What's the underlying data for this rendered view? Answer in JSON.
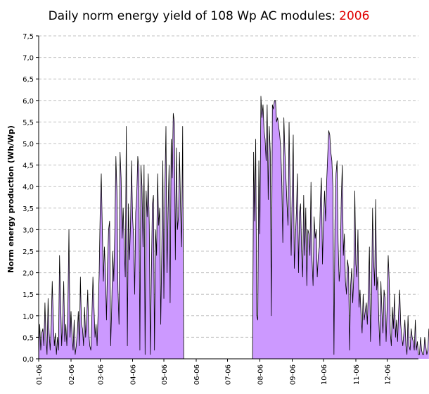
{
  "chart_data": {
    "type": "area",
    "title": "Daily norm energy yield of 108 Wp AC modules:",
    "title_year": "2006",
    "ylabel": "Norm energy production (Wh/Wp)",
    "xlabel": "",
    "ylim": [
      0,
      7.5
    ],
    "xlim": [
      1,
      365
    ],
    "yticks": [
      "0,0",
      "0,5",
      "1,0",
      "1,5",
      "2,0",
      "2,5",
      "3,0",
      "3,5",
      "4,0",
      "4,5",
      "5,0",
      "5,5",
      "6,0",
      "6,5",
      "7,0",
      "7,5"
    ],
    "month_labels": [
      "01-06",
      "02-06",
      "03-06",
      "04-06",
      "05-06",
      "06-06",
      "07-06",
      "08-06",
      "09-06",
      "10-06",
      "11-06",
      "12-06"
    ],
    "grid": true,
    "legend": "none",
    "colors": {
      "fill": "#cc99ff",
      "line": "#000000",
      "title_year": "#e00000",
      "grid": "#c0c0c0"
    },
    "note": "",
    "series": [
      {
        "values": [
          0.1,
          0.8,
          0.2,
          0.6,
          0.7,
          0.3,
          1.3,
          0.5,
          0.1,
          1.4,
          0.6,
          0.2,
          0.8,
          1.8,
          0.9,
          0.3,
          0.6,
          0.1,
          0.5,
          0.2,
          2.4,
          1.4,
          0.3,
          0.9,
          1.8,
          0.4,
          0.8,
          0.3,
          1.2,
          3.0,
          0.5,
          1.1,
          0.5,
          0.2,
          0.9,
          0.1,
          0.3,
          0.6,
          1.1,
          0.3,
          1.9,
          0.8,
          0.7,
          0.3,
          1.2,
          0.5,
          0.9,
          1.6,
          0.6,
          0.3,
          0.2,
          1.0,
          1.9,
          1.2,
          0.5,
          0.8,
          0.3,
          1.1,
          2.0,
          3.5,
          4.3,
          3.0,
          1.8,
          2.6,
          2.0,
          0.9,
          2.2,
          3.0,
          3.2,
          0.3,
          1.2,
          2.5,
          1.8,
          3.0,
          4.7,
          3.9,
          1.6,
          0.8,
          4.8,
          4.2,
          2.8,
          3.5,
          2.6,
          1.9,
          5.4,
          0.3,
          3.6,
          2.3,
          3.1,
          4.6,
          3.3,
          2.8,
          1.5,
          3.4,
          3.8,
          4.7,
          4.4,
          0.2,
          4.5,
          4.0,
          2.6,
          4.5,
          0.1,
          3.9,
          3.3,
          4.3,
          3.1,
          0.1,
          2.0,
          3.6,
          3.8,
          0.2,
          3.0,
          2.4,
          4.3,
          3.1,
          3.5,
          0.8,
          2.5,
          4.6,
          1.4,
          4.0,
          5.4,
          2.0,
          3.4,
          4.5,
          1.3,
          5.1,
          4.2,
          5.7,
          5.5,
          2.3,
          4.9,
          3.0,
          3.3,
          4.8,
          3.5,
          2.6,
          5.4,
          0,
          0,
          0,
          0,
          0,
          0,
          0,
          0,
          0,
          0,
          0,
          0,
          0,
          0,
          0,
          0,
          0,
          0,
          0,
          0,
          0,
          0,
          0,
          0,
          0,
          0,
          0,
          0,
          0,
          0,
          0,
          0,
          0,
          0,
          0,
          0,
          0,
          0,
          0,
          0,
          0,
          0,
          0,
          0,
          0,
          0,
          0,
          0,
          0,
          0,
          0,
          0,
          0,
          0,
          0,
          0,
          0,
          0,
          0,
          0,
          0,
          0,
          0,
          0,
          0,
          0,
          0,
          4.8,
          3.2,
          5.1,
          1.0,
          0.9,
          4.6,
          2.9,
          6.1,
          5.6,
          5.9,
          5.3,
          5.1,
          4.6,
          5.9,
          3.7,
          5.4,
          4.8,
          1.0,
          5.9,
          5.8,
          6.0,
          6.0,
          5.5,
          5.6,
          5.4,
          5.2,
          4.9,
          4.1,
          2.7,
          5.6,
          4.8,
          4.2,
          3.6,
          3.1,
          5.5,
          3.8,
          2.4,
          3.9,
          5.2,
          2.1,
          2.8,
          3.4,
          4.3,
          2.0,
          3.4,
          3.6,
          2.5,
          1.9,
          3.8,
          2.4,
          3.5,
          1.7,
          3.0,
          2.9,
          2.4,
          4.1,
          2.3,
          1.7,
          3.3,
          2.8,
          3.0,
          1.9,
          2.4,
          2.6,
          3.7,
          4.2,
          2.2,
          3.2,
          3.9,
          3.2,
          4.1,
          4.7,
          5.3,
          5.2,
          4.8,
          4.6,
          4.0,
          0.1,
          3.2,
          4.3,
          4.6,
          2.7,
          1.8,
          2.1,
          3.7,
          4.5,
          2.4,
          2.9,
          1.8,
          1.5,
          2.3,
          2.1,
          0.2,
          1.7,
          2.1,
          1.3,
          1.9,
          3.9,
          2.2,
          1.9,
          3.0,
          1.2,
          1.6,
          1.0,
          0.6,
          1.5,
          0.9,
          1.1,
          1.3,
          0.8,
          1.6,
          2.6,
          0.4,
          1.3,
          3.5,
          2.3,
          1.7,
          3.7,
          1.6,
          1.9,
          0.9,
          0.3,
          1.8,
          1.1,
          0.6,
          1.6,
          1.4,
          0.4,
          1.2,
          2.4,
          1.8,
          0.6,
          0.3,
          1.2,
          0.7,
          1.5,
          0.5,
          0.9,
          0.4,
          1.1,
          1.6,
          0.8,
          0.5,
          0.3,
          0.6,
          0.9,
          0.3,
          0.1,
          1.0,
          0.3,
          0.2,
          0.7,
          0.5,
          0.4,
          0.2,
          0.9,
          0.2,
          0.4,
          0.1,
          0.1,
          0.5,
          0.2,
          0.1,
          0.1,
          0.5,
          0.3,
          0.1,
          0.2,
          0.7
        ]
      }
    ]
  }
}
